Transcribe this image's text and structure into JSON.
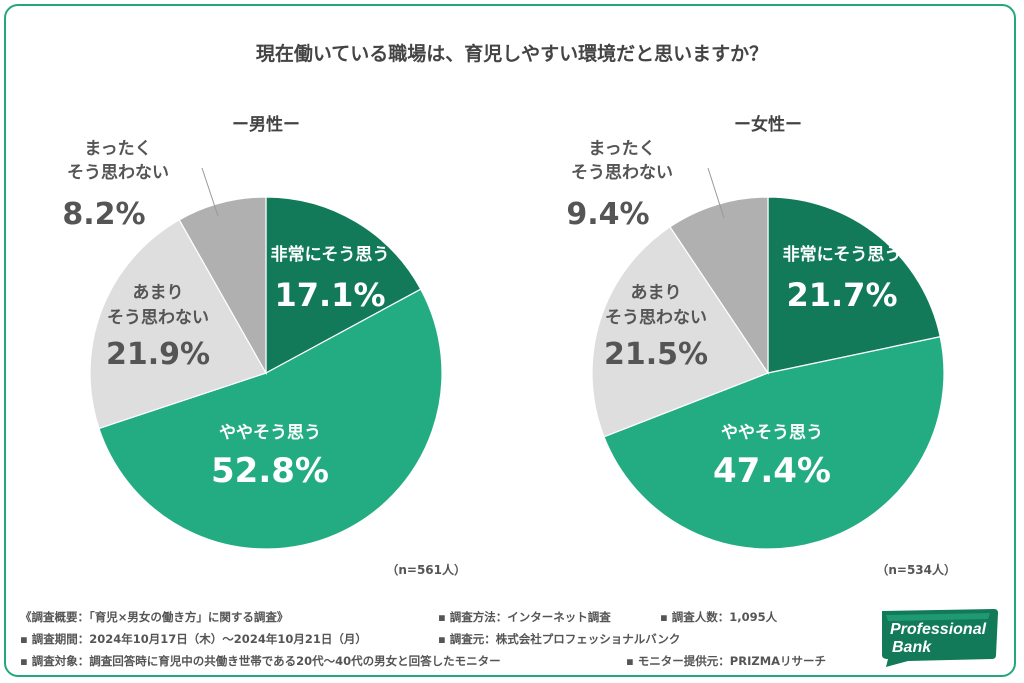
{
  "chart_data": [
    {
      "type": "pie",
      "title": "現在働いている職場は、育児しやすい環境だと思いますか？",
      "subtitle": "ー男性ー",
      "sample": "（n=561人）",
      "slices": [
        {
          "label": "非常にそう思う",
          "value": 17.1,
          "value_text": "17.1%",
          "color": "#127a58"
        },
        {
          "label": "ややそう思う",
          "value": 52.8,
          "value_text": "52.8%",
          "color": "#23ac81"
        },
        {
          "label": "あまり\nそう思わない",
          "value": 21.9,
          "value_text": "21.9%",
          "color": "#dedede"
        },
        {
          "label": "まったく\nそう思わない",
          "value": 8.2,
          "value_text": "8.2%",
          "color": "#b0b0b0"
        }
      ]
    },
    {
      "type": "pie",
      "title": "現在働いている職場は、育児しやすい環境だと思いますか？",
      "subtitle": "ー女性ー",
      "sample": "（n=534人）",
      "slices": [
        {
          "label": "非常にそう思う",
          "value": 21.7,
          "value_text": "21.7%",
          "color": "#127a58"
        },
        {
          "label": "ややそう思う",
          "value": 47.4,
          "value_text": "47.4%",
          "color": "#23ac81"
        },
        {
          "label": "あまり\nそう思わない",
          "value": 21.5,
          "value_text": "21.5%",
          "color": "#dedede"
        },
        {
          "label": "まったく\nそう思わない",
          "value": 9.4,
          "value_text": "9.4%",
          "color": "#b0b0b0"
        }
      ]
    }
  ],
  "footer": {
    "overview": "《調査概要：「育児×男女の働き方」に関する調査》",
    "method": "▪ 調査方法：インターネット調査",
    "count": "▪ 調査人数：1,095人",
    "period": "▪ 調査期間：2024年10月17日（木）〜2024年10月21日（月）",
    "source": "▪ 調査元：株式会社プロフェッショナルバンク",
    "target": "▪ 調査対象：調査回答時に育児中の共働き世帯である20代〜40代の男女と回答したモニター",
    "provider": "▪ モニター提供元：PRIZMAリサーチ"
  },
  "logo": {
    "line1": "Professional",
    "line2": "Bank",
    "color": "#127a58"
  }
}
